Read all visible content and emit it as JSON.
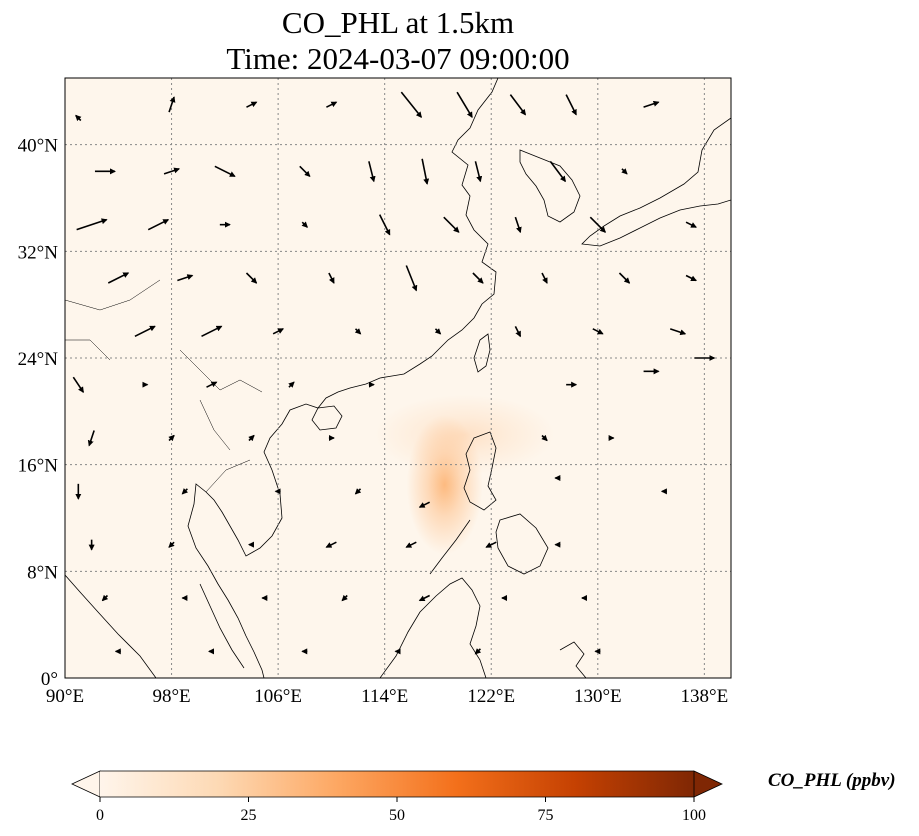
{
  "title": {
    "line1": "CO_PHL at 1.5km",
    "line2": "Time: 2024-03-07 09:00:00"
  },
  "axes": {
    "lon_ticks": [
      "90°E",
      "98°E",
      "106°E",
      "114°E",
      "122°E",
      "130°E",
      "138°E"
    ],
    "lon_values": [
      90,
      98,
      106,
      114,
      122,
      130,
      138
    ],
    "lat_ticks": [
      "0°",
      "8°N",
      "16°N",
      "24°N",
      "32°N",
      "40°N"
    ],
    "lat_values": [
      0,
      8,
      16,
      24,
      32,
      40
    ],
    "lon_range": [
      90,
      140
    ],
    "lat_range": [
      0,
      45
    ],
    "gridlines": true
  },
  "colorbar": {
    "label": "CO_PHL (ppbv)",
    "ticks": [
      "0",
      "25",
      "50",
      "75",
      "100"
    ],
    "tick_values": [
      0,
      25,
      50,
      75,
      100
    ],
    "range": [
      0,
      100
    ],
    "extend": "both",
    "colors": [
      "#fff5eb",
      "#fdd9b4",
      "#fda762",
      "#f3701b",
      "#c54102",
      "#7f2704"
    ]
  },
  "plume": {
    "center_lon": 118.5,
    "center_lat": 14.5,
    "peak_value": 30,
    "color": "#fdb77a"
  },
  "background_color": "#fef6ec",
  "arrow_color": "#000000",
  "wind_vectors": [
    {
      "lon": 91,
      "lat": 42,
      "u": -1,
      "v": 1
    },
    {
      "lon": 98,
      "lat": 43,
      "u": 1,
      "v": 3
    },
    {
      "lon": 104,
      "lat": 43,
      "u": 2,
      "v": 1
    },
    {
      "lon": 110,
      "lat": 43,
      "u": 2,
      "v": 1
    },
    {
      "lon": 116,
      "lat": 43,
      "u": 4,
      "v": -5
    },
    {
      "lon": 120,
      "lat": 43,
      "u": 3,
      "v": -5
    },
    {
      "lon": 124,
      "lat": 43,
      "u": 3,
      "v": -4
    },
    {
      "lon": 128,
      "lat": 43,
      "u": 2,
      "v": -4
    },
    {
      "lon": 134,
      "lat": 43,
      "u": 3,
      "v": 1
    },
    {
      "lon": 93,
      "lat": 38,
      "u": 4,
      "v": 0
    },
    {
      "lon": 98,
      "lat": 38,
      "u": 3,
      "v": 1
    },
    {
      "lon": 102,
      "lat": 38,
      "u": 4,
      "v": -2
    },
    {
      "lon": 108,
      "lat": 38,
      "u": 2,
      "v": -2
    },
    {
      "lon": 113,
      "lat": 38,
      "u": 1,
      "v": -4
    },
    {
      "lon": 117,
      "lat": 38,
      "u": 1,
      "v": -5
    },
    {
      "lon": 121,
      "lat": 38,
      "u": 1,
      "v": -4
    },
    {
      "lon": 127,
      "lat": 38,
      "u": 3,
      "v": -4
    },
    {
      "lon": 132,
      "lat": 38,
      "u": 1,
      "v": -1
    },
    {
      "lon": 92,
      "lat": 34,
      "u": 6,
      "v": 2
    },
    {
      "lon": 97,
      "lat": 34,
      "u": 4,
      "v": 2
    },
    {
      "lon": 102,
      "lat": 34,
      "u": 2,
      "v": 0
    },
    {
      "lon": 108,
      "lat": 34,
      "u": 1,
      "v": -1
    },
    {
      "lon": 114,
      "lat": 34,
      "u": 2,
      "v": -4
    },
    {
      "lon": 119,
      "lat": 34,
      "u": 3,
      "v": -3
    },
    {
      "lon": 124,
      "lat": 34,
      "u": 1,
      "v": -3
    },
    {
      "lon": 130,
      "lat": 34,
      "u": 3,
      "v": -3
    },
    {
      "lon": 137,
      "lat": 34,
      "u": 2,
      "v": -1
    },
    {
      "lon": 94,
      "lat": 30,
      "u": 4,
      "v": 2
    },
    {
      "lon": 99,
      "lat": 30,
      "u": 3,
      "v": 1
    },
    {
      "lon": 104,
      "lat": 30,
      "u": 2,
      "v": -2
    },
    {
      "lon": 110,
      "lat": 30,
      "u": 1,
      "v": -2
    },
    {
      "lon": 116,
      "lat": 30,
      "u": 2,
      "v": -5
    },
    {
      "lon": 121,
      "lat": 30,
      "u": 2,
      "v": -2
    },
    {
      "lon": 126,
      "lat": 30,
      "u": 1,
      "v": -2
    },
    {
      "lon": 132,
      "lat": 30,
      "u": 2,
      "v": -2
    },
    {
      "lon": 137,
      "lat": 30,
      "u": 2,
      "v": -1
    },
    {
      "lon": 96,
      "lat": 26,
      "u": 4,
      "v": 2
    },
    {
      "lon": 101,
      "lat": 26,
      "u": 4,
      "v": 2
    },
    {
      "lon": 106,
      "lat": 26,
      "u": 2,
      "v": 1
    },
    {
      "lon": 112,
      "lat": 26,
      "u": 1,
      "v": -1
    },
    {
      "lon": 118,
      "lat": 26,
      "u": 1,
      "v": -1
    },
    {
      "lon": 124,
      "lat": 26,
      "u": 1,
      "v": -2
    },
    {
      "lon": 130,
      "lat": 26,
      "u": 2,
      "v": -1
    },
    {
      "lon": 136,
      "lat": 26,
      "u": 3,
      "v": -1
    },
    {
      "lon": 91,
      "lat": 22,
      "u": 2,
      "v": -3
    },
    {
      "lon": 96,
      "lat": 22,
      "u": 1,
      "v": 0
    },
    {
      "lon": 101,
      "lat": 22,
      "u": 2,
      "v": 1
    },
    {
      "lon": 107,
      "lat": 22,
      "u": 1,
      "v": 1
    },
    {
      "lon": 113,
      "lat": 22,
      "u": 1,
      "v": 0
    },
    {
      "lon": 128,
      "lat": 22,
      "u": 2,
      "v": 0
    },
    {
      "lon": 134,
      "lat": 23,
      "u": 3,
      "v": 0
    },
    {
      "lon": 138,
      "lat": 24,
      "u": 4,
      "v": 0
    },
    {
      "lon": 92,
      "lat": 18,
      "u": -1,
      "v": -3
    },
    {
      "lon": 98,
      "lat": 18,
      "u": 1,
      "v": 1
    },
    {
      "lon": 104,
      "lat": 18,
      "u": 1,
      "v": 1
    },
    {
      "lon": 110,
      "lat": 18,
      "u": 1,
      "v": 0
    },
    {
      "lon": 126,
      "lat": 18,
      "u": 1,
      "v": -1
    },
    {
      "lon": 131,
      "lat": 18,
      "u": 1,
      "v": 0
    },
    {
      "lon": 91,
      "lat": 14,
      "u": 0,
      "v": -3
    },
    {
      "lon": 99,
      "lat": 14,
      "u": -1,
      "v": -1
    },
    {
      "lon": 106,
      "lat": 14,
      "u": -1,
      "v": 0
    },
    {
      "lon": 112,
      "lat": 14,
      "u": -1,
      "v": -1
    },
    {
      "lon": 117,
      "lat": 13,
      "u": -2,
      "v": -1
    },
    {
      "lon": 127,
      "lat": 15,
      "u": -1,
      "v": 0
    },
    {
      "lon": 135,
      "lat": 14,
      "u": -1,
      "v": 0
    },
    {
      "lon": 92,
      "lat": 10,
      "u": 0,
      "v": -2
    },
    {
      "lon": 98,
      "lat": 10,
      "u": -1,
      "v": -1
    },
    {
      "lon": 104,
      "lat": 10,
      "u": -1,
      "v": 0
    },
    {
      "lon": 110,
      "lat": 10,
      "u": -2,
      "v": -1
    },
    {
      "lon": 116,
      "lat": 10,
      "u": -2,
      "v": -1
    },
    {
      "lon": 122,
      "lat": 10,
      "u": -2,
      "v": -1
    },
    {
      "lon": 127,
      "lat": 10,
      "u": -1,
      "v": 0
    },
    {
      "lon": 93,
      "lat": 6,
      "u": -1,
      "v": -1
    },
    {
      "lon": 99,
      "lat": 6,
      "u": -1,
      "v": 0
    },
    {
      "lon": 105,
      "lat": 6,
      "u": -1,
      "v": 0
    },
    {
      "lon": 111,
      "lat": 6,
      "u": -1,
      "v": -1
    },
    {
      "lon": 117,
      "lat": 6,
      "u": -2,
      "v": -1
    },
    {
      "lon": 123,
      "lat": 6,
      "u": -1,
      "v": 0
    },
    {
      "lon": 129,
      "lat": 6,
      "u": -1,
      "v": 0
    },
    {
      "lon": 94,
      "lat": 2,
      "u": -1,
      "v": 0
    },
    {
      "lon": 101,
      "lat": 2,
      "u": -1,
      "v": 0
    },
    {
      "lon": 108,
      "lat": 2,
      "u": -1,
      "v": 0
    },
    {
      "lon": 115,
      "lat": 2,
      "u": -1,
      "v": 0
    },
    {
      "lon": 121,
      "lat": 2,
      "u": -1,
      "v": -1
    },
    {
      "lon": 130,
      "lat": 2,
      "u": -1,
      "v": 0
    }
  ]
}
